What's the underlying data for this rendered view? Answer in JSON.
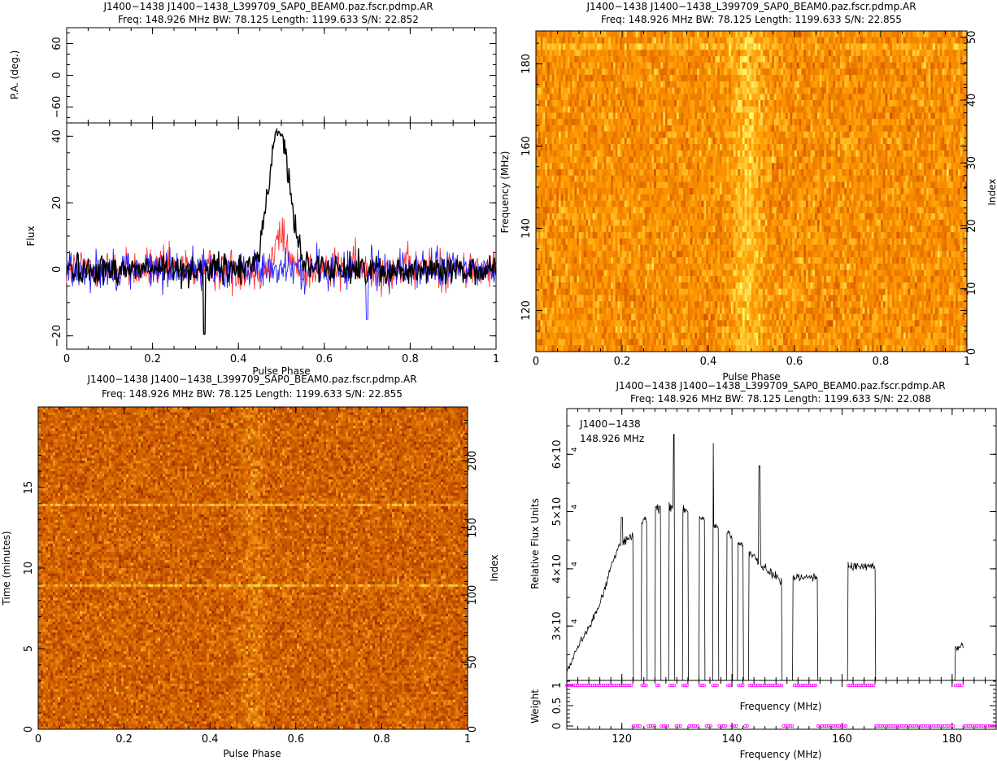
{
  "chart_data": [
    {
      "type": "line",
      "id": "polarization-profile",
      "title": "J1400−1438 J1400−1438_L399709_SAP0_BEAM0.paz.fscr.pdmp.AR",
      "subtitle": "Freq: 148.926 MHz BW: 78.125 Length: 1199.633 S/N: 22.852",
      "pa_panel": {
        "ylabel": "P.A. (deg.)",
        "ylim": [
          -90,
          90
        ],
        "yticks": [
          "−60",
          "0",
          "60"
        ],
        "ytick_values": [
          -60,
          0,
          60
        ]
      },
      "flux_panel": {
        "ylabel": "Flux",
        "ylim": [
          -24,
          44
        ],
        "yticks": [
          "−20",
          "0",
          "20",
          "40"
        ],
        "ytick_values": [
          -20,
          0,
          20,
          40
        ]
      },
      "xlabel": "Pulse Phase",
      "xlim": [
        0,
        1
      ],
      "xticks": [
        "0",
        "0.2",
        "0.4",
        "0.6",
        "0.8",
        "1"
      ],
      "xtick_values": [
        0,
        0.2,
        0.4,
        0.6,
        0.8,
        1
      ],
      "series": [
        {
          "key": "I",
          "color": "#000000",
          "peak_phase": 0.495,
          "peak_value": 42,
          "width": 0.035,
          "noise": 3.2,
          "dip_phase": 0.32,
          "dip_value": -19.5
        },
        {
          "key": "L",
          "color": "#ff3030",
          "peak_phase": 0.5,
          "peak_value": 10,
          "width": 0.02,
          "noise": 4.5
        },
        {
          "key": "V",
          "color": "#2020ff",
          "peak_phase": 0.5,
          "peak_value": 0,
          "width": 0.02,
          "noise": 4.2,
          "dip_phase": 0.7,
          "dip_value": -15
        }
      ]
    },
    {
      "type": "heatmap",
      "id": "frequency-phase",
      "title": "J1400−1438 J1400−1438_L399709_SAP0_BEAM0.paz.fscr.pdmp.AR",
      "subtitle": "Freq: 148.926 MHz BW: 78.125 Length: 1199.633 S/N: 22.855",
      "xlabel": "Pulse Phase",
      "ylabel": "Frequency (MHz)",
      "y2label": "Index",
      "xlim": [
        0,
        1
      ],
      "ylim": [
        110,
        188
      ],
      "y2lim": [
        0,
        51
      ],
      "xticks": [
        "0",
        "0.2",
        "0.4",
        "0.6",
        "0.8",
        "1"
      ],
      "xtick_values": [
        0,
        0.2,
        0.4,
        0.6,
        0.8,
        1
      ],
      "yticks": [
        "120",
        "140",
        "160",
        "180"
      ],
      "ytick_values": [
        120,
        140,
        160,
        180
      ],
      "y2ticks": [
        "0",
        "10",
        "20",
        "30",
        "40",
        "50"
      ],
      "y2tick_values": [
        0,
        10,
        20,
        30,
        40,
        50
      ],
      "pulse_phase": 0.49,
      "colormap": [
        "#d25000",
        "#ff9a00",
        "#ffff70"
      ]
    },
    {
      "type": "heatmap",
      "id": "time-phase",
      "title": "J1400−1438 J1400−1438_L399709_SAP0_BEAM0.paz.fscr.pdmp.AR",
      "subtitle": "Freq: 148.926 MHz BW: 78.125 Length: 1199.633 S/N: 22.855",
      "xlabel": "Pulse Phase",
      "ylabel": "Time (minutes)",
      "y2label": "Index",
      "xlim": [
        0,
        1
      ],
      "ylim": [
        0,
        20
      ],
      "y2lim": [
        0,
        240
      ],
      "xticks": [
        "0",
        "0.2",
        "0.4",
        "0.6",
        "0.8",
        "1"
      ],
      "xtick_values": [
        0,
        0.2,
        0.4,
        0.6,
        0.8,
        1
      ],
      "yticks": [
        "0",
        "5",
        "10",
        "15"
      ],
      "ytick_values": [
        0,
        5,
        10,
        15
      ],
      "y2ticks": [
        "0",
        "50",
        "100",
        "150",
        "200"
      ],
      "y2tick_values": [
        0,
        50,
        100,
        150,
        200
      ],
      "pulse_phase": 0.5,
      "colormap": [
        "#a03000",
        "#e07000",
        "#ffd040"
      ]
    },
    {
      "type": "line",
      "id": "bandpass",
      "title": "J1400−1438 J1400−1438_L399709_SAP0_BEAM0.paz.fscr.pdmp.AR",
      "subtitle": "Freq: 148.926 MHz BW: 78.125 Length: 1199.633 S/N: 22.088",
      "annotation": [
        "J1400−1438",
        "148.926 MHz"
      ],
      "flux_panel": {
        "ylabel": "Relative Flux Units",
        "ylim": [
          20500,
          68000
        ],
        "yticks": [
          "3×10",
          "4×10",
          "5×10",
          "6×10"
        ],
        "ytick_values": [
          30000,
          40000,
          50000,
          60000
        ],
        "ytick_exponent": "4"
      },
      "weight_panel": {
        "ylabel": "Weight",
        "ylim": [
          -0.08,
          1.12
        ],
        "yticks": [
          "0",
          "0.5",
          "1"
        ],
        "ytick_values": [
          0,
          0.5,
          1
        ],
        "marker_color": "#ff00ff"
      },
      "xlabel": "Frequency (MHz)",
      "xlabel_inner": "Frequency (MHz)",
      "xlim": [
        110,
        188
      ],
      "xticks": [
        "120",
        "140",
        "160",
        "180"
      ],
      "xtick_values": [
        120,
        140,
        160,
        180
      ],
      "shape": {
        "rise": [
          [
            110,
            22000
          ],
          [
            112,
            26500
          ],
          [
            114,
            29500
          ],
          [
            116,
            34000
          ],
          [
            118,
            40000
          ],
          [
            119.5,
            44000
          ],
          [
            122,
            46000
          ],
          [
            124,
            48500
          ],
          [
            126,
            50500
          ],
          [
            130,
            51000
          ],
          [
            134,
            49000
          ],
          [
            138,
            47000
          ],
          [
            142,
            44000
          ],
          [
            146,
            40000
          ],
          [
            149,
            38000
          ]
        ],
        "segments": [
          [
            110,
            122
          ],
          [
            123.5,
            124.5
          ],
          [
            126,
            127
          ],
          [
            128.5,
            129.5
          ],
          [
            131,
            132
          ],
          [
            134,
            135
          ],
          [
            136.5,
            137.5
          ],
          [
            139,
            140
          ],
          [
            141,
            142
          ],
          [
            143,
            149
          ],
          [
            151,
            155.5
          ],
          [
            161,
            166
          ],
          [
            180.5,
            182
          ]
        ],
        "spikes": [
          [
            120,
            49000
          ],
          [
            125.5,
            53000
          ],
          [
            129.5,
            63500
          ],
          [
            133,
            53500
          ],
          [
            136.5,
            62000
          ],
          [
            145,
            58000
          ]
        ],
        "plateaus": [
          {
            "start": 151,
            "end": 155.5,
            "value": 38500
          },
          {
            "start": 161,
            "end": 166,
            "value": 40500
          },
          {
            "start": 180.5,
            "end": 182,
            "value": 26500
          }
        ]
      }
    }
  ]
}
